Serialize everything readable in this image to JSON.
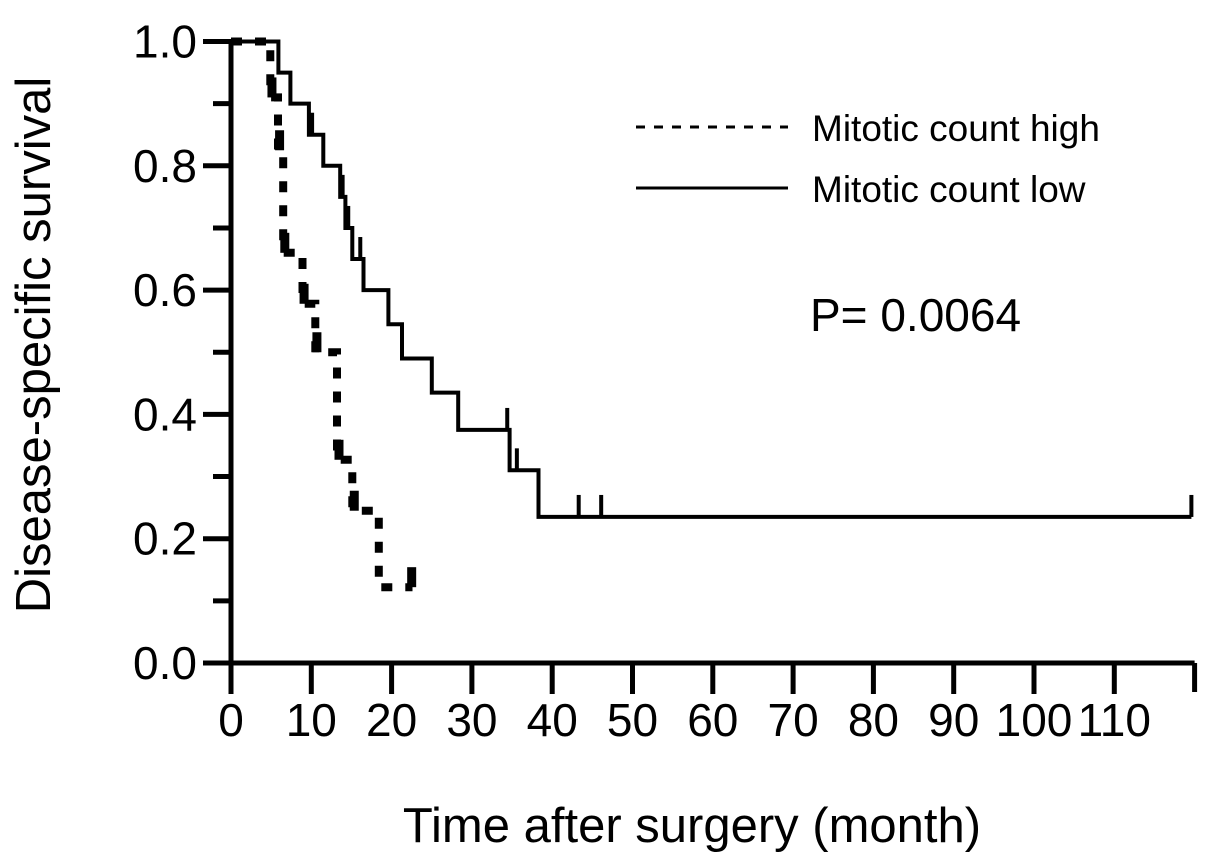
{
  "figure": {
    "background": "#ffffff",
    "foreground": "#000000"
  },
  "chart_data": {
    "type": "line",
    "subtype": "kaplan-meier-step-curves",
    "title": "",
    "xlabel": "Time after surgery (month)",
    "ylabel": "Disease-specific survival",
    "xlim": [
      0,
      120
    ],
    "ylim": [
      0,
      1
    ],
    "grid": false,
    "legend_position": "upper-right-inside",
    "x_ticks": [
      0,
      10,
      20,
      30,
      40,
      50,
      60,
      70,
      80,
      90,
      100,
      110
    ],
    "x_axis_end_tick": 120,
    "y_ticks": [
      {
        "value": 1.0,
        "label": "1.0"
      },
      {
        "value": 0.8,
        "label": "0.8"
      },
      {
        "value": 0.6,
        "label": "0.6"
      },
      {
        "value": 0.4,
        "label": "0.4"
      },
      {
        "value": 0.2,
        "label": "0.2"
      },
      {
        "value": 0.0,
        "label": "0.0"
      }
    ],
    "y_minor_ticks": [
      0.9,
      0.7,
      0.5,
      0.3,
      0.1
    ],
    "p_value_label": "P= 0.0064",
    "legend": [
      {
        "label": "Mitotic count high",
        "style": "dashed"
      },
      {
        "label": "Mitotic count low",
        "style": "solid"
      }
    ],
    "series": [
      {
        "name": "Mitotic count high",
        "style": "dashed",
        "points": [
          [
            0,
            1.0
          ],
          [
            4.9,
            1.0
          ],
          [
            4.9,
            0.91
          ],
          [
            5.85,
            0.91
          ],
          [
            5.85,
            0.825
          ],
          [
            6.5,
            0.825
          ],
          [
            6.5,
            0.66
          ],
          [
            8.9,
            0.66
          ],
          [
            8.9,
            0.578
          ],
          [
            10.5,
            0.578
          ],
          [
            10.5,
            0.5
          ],
          [
            13.2,
            0.5
          ],
          [
            13.2,
            0.327
          ],
          [
            15.1,
            0.327
          ],
          [
            15.1,
            0.245
          ],
          [
            18.4,
            0.245
          ],
          [
            18.4,
            0.122
          ],
          [
            22.6,
            0.122
          ]
        ],
        "censor_marks": [
          [
            5.1,
            0.91
          ],
          [
            6.05,
            0.825
          ],
          [
            6.7,
            0.66
          ],
          [
            9.1,
            0.578
          ],
          [
            10.7,
            0.5
          ],
          [
            13.45,
            0.327
          ],
          [
            15.35,
            0.245
          ],
          [
            22.5,
            0.122
          ]
        ]
      },
      {
        "name": "Mitotic count low",
        "style": "solid",
        "points": [
          [
            0,
            1.0
          ],
          [
            5.9,
            1.0
          ],
          [
            5.9,
            0.95
          ],
          [
            7.4,
            0.95
          ],
          [
            7.4,
            0.9
          ],
          [
            9.7,
            0.9
          ],
          [
            9.7,
            0.85
          ],
          [
            11.5,
            0.85
          ],
          [
            11.5,
            0.8
          ],
          [
            13.6,
            0.8
          ],
          [
            13.6,
            0.75
          ],
          [
            14.25,
            0.75
          ],
          [
            14.25,
            0.7
          ],
          [
            15.1,
            0.7
          ],
          [
            15.1,
            0.65
          ],
          [
            16.5,
            0.65
          ],
          [
            16.5,
            0.6
          ],
          [
            19.6,
            0.6
          ],
          [
            19.6,
            0.545
          ],
          [
            21.3,
            0.545
          ],
          [
            21.3,
            0.49
          ],
          [
            25,
            0.49
          ],
          [
            25,
            0.435
          ],
          [
            28.3,
            0.435
          ],
          [
            28.3,
            0.375
          ],
          [
            34.7,
            0.375
          ],
          [
            34.7,
            0.31
          ],
          [
            38.3,
            0.31
          ],
          [
            38.3,
            0.235
          ],
          [
            119.6,
            0.235
          ]
        ],
        "censor_marks": [
          [
            10.1,
            0.85
          ],
          [
            13.9,
            0.75
          ],
          [
            14.6,
            0.7
          ],
          [
            16.1,
            0.65
          ],
          [
            34.4,
            0.375
          ],
          [
            35.6,
            0.31
          ],
          [
            43.3,
            0.235
          ],
          [
            46.1,
            0.235
          ],
          [
            119.6,
            0.235
          ]
        ]
      }
    ]
  }
}
